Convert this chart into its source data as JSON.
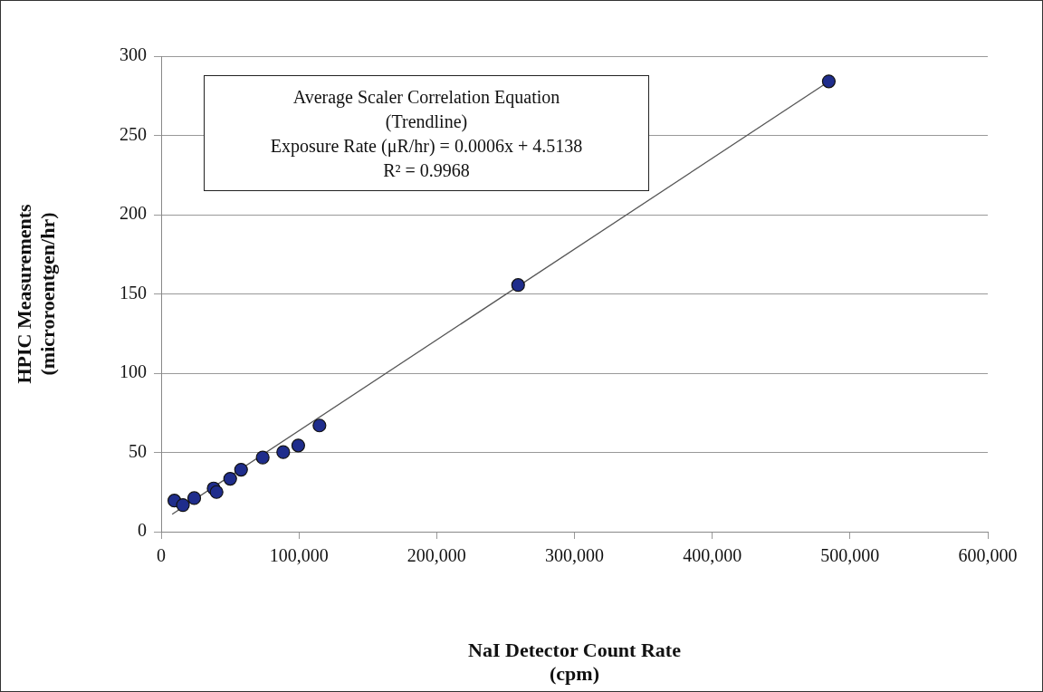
{
  "chart_data": {
    "type": "scatter",
    "xlabel": "NaI Detector Count Rate\n(cpm)",
    "ylabel": "HPIC Measurements\n(microroentgen/hr)",
    "annotations": [
      "Average Scaler Correlation Equation",
      "(Trendline)",
      "Exposure Rate (μR/hr) = 0.0006x + 4.5138",
      "R² = 0.9968"
    ],
    "xlim": [
      0,
      600000
    ],
    "xticks": [
      0,
      {
        "value": 100000,
        "label": "100,000"
      },
      {
        "value": 200000,
        "label": "200,000"
      },
      {
        "value": 300000,
        "label": "300,000"
      },
      {
        "value": 400000,
        "label": "400,000"
      },
      {
        "value": 500000,
        "label": "500,000"
      },
      {
        "value": 600000,
        "label": "600,000"
      }
    ],
    "ylim": [
      0,
      300
    ],
    "yticks": [
      0,
      50,
      100,
      150,
      200,
      250,
      300
    ],
    "grid": "y",
    "marker": "circle",
    "series": [
      {
        "color": "#1f2d8c",
        "x": [
          9600,
          15800,
          24000,
          38100,
          40200,
          50100,
          58000,
          73700,
          88600,
          99500,
          114900,
          259100,
          484600
        ],
        "values": [
          19.6,
          16.8,
          21.2,
          27.3,
          25.0,
          33.4,
          39.1,
          46.8,
          50.2,
          54.4,
          67.0,
          155.6,
          284.1
        ]
      },
      {
        "type": "line",
        "color": "#555555",
        "line_style": "solid",
        "marker": "none",
        "x": [
          8000,
          484600
        ],
        "values": [
          11,
          284
        ]
      }
    ]
  }
}
